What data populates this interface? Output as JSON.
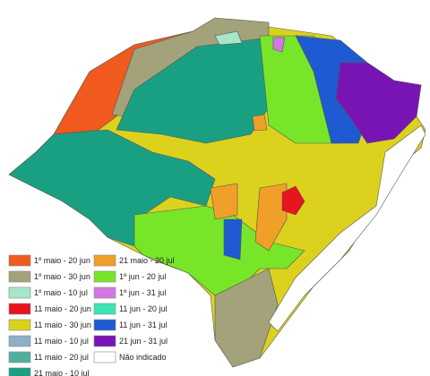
{
  "legend": {
    "items": [
      {
        "label": "1º maio - 20 jun",
        "color": "#f05a1e"
      },
      {
        "label": "1º maio - 30 jun",
        "color": "#a3a27a"
      },
      {
        "label": "1º maio - 10 jul",
        "color": "#a8e6c8"
      },
      {
        "label": "11 maio - 20 jun",
        "color": "#e8141e"
      },
      {
        "label": "11 maio - 30 jun",
        "color": "#dcd21e"
      },
      {
        "label": "11 maio - 10 jul",
        "color": "#8cb0c8"
      },
      {
        "label": "11 maio - 20 jul",
        "color": "#4fb0a0"
      },
      {
        "label": "21 maio - 10 jul",
        "color": "#19a082"
      },
      {
        "label": "21 maio - 20 jul",
        "color": "#f0a028"
      },
      {
        "label": "1º jun - 20 jul",
        "color": "#78e628"
      },
      {
        "label": "1º jun - 31 jul",
        "color": "#d278e6"
      },
      {
        "label": "11 jun - 20 jul",
        "color": "#3ce6b4"
      },
      {
        "label": "11 jun - 31 jul",
        "color": "#1e5ad2"
      },
      {
        "label": "21 jun - 31 jul",
        "color": "#7814b4"
      },
      {
        "label": "Não indicado",
        "color": "#ffffff"
      }
    ]
  }
}
